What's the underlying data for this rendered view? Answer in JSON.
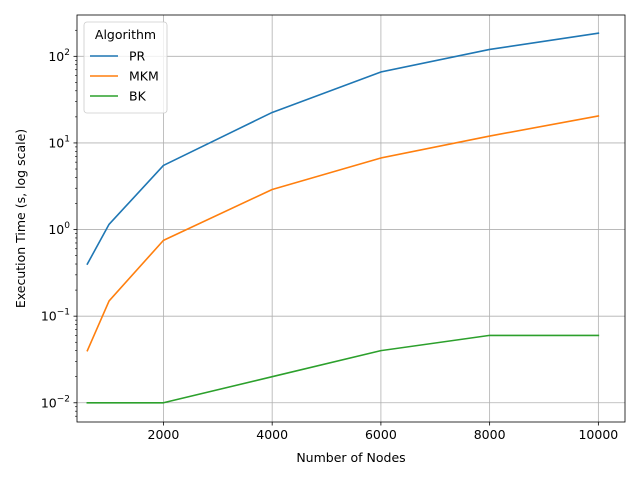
{
  "chart_data": {
    "type": "line",
    "title": "",
    "xlabel": "Number of Nodes",
    "ylabel": "Execution Time (s, log scale)",
    "yscale": "log",
    "xlim": [
      410,
      10490
    ],
    "ylim": [
      0.006,
      300
    ],
    "grid": true,
    "legend": {
      "title": "Algorithm",
      "position": "top-left"
    },
    "xticks": [
      2000,
      4000,
      6000,
      8000,
      10000
    ],
    "xtick_labels": [
      "2000",
      "4000",
      "6000",
      "8000",
      "10000"
    ],
    "yticks": [
      0.01,
      0.1,
      1,
      10,
      100
    ],
    "ytick_labels": [
      {
        "base": "10",
        "exp": "−2"
      },
      {
        "base": "10",
        "exp": "−1"
      },
      {
        "base": "10",
        "exp": "0"
      },
      {
        "base": "10",
        "exp": "1"
      },
      {
        "base": "10",
        "exp": "2"
      }
    ],
    "x": [
      600,
      1000,
      2000,
      4000,
      6000,
      8000,
      10000
    ],
    "series": [
      {
        "name": "PR",
        "color": "#1f77b4",
        "values": [
          0.4,
          1.15,
          5.5,
          22.5,
          66,
          120,
          185
        ]
      },
      {
        "name": "MKM",
        "color": "#ff7f0e",
        "values": [
          0.04,
          0.15,
          0.75,
          2.9,
          6.7,
          12,
          20.5
        ]
      },
      {
        "name": "BK",
        "color": "#2ca02c",
        "values": [
          0.01,
          0.01,
          0.01,
          0.02,
          0.04,
          0.06,
          0.06
        ]
      }
    ]
  }
}
